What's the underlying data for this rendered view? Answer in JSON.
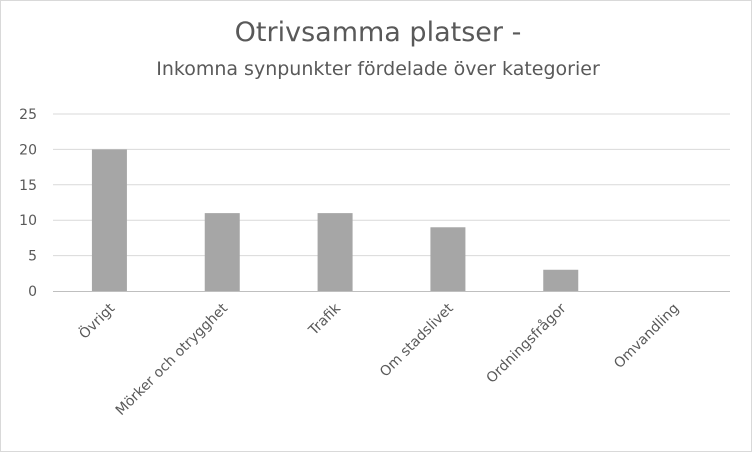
{
  "chart_data": {
    "type": "bar",
    "title": "Otrivsamma platser -",
    "subtitle": "Inkomna synpunkter fördelade över kategorier",
    "xlabel": "",
    "ylabel": "",
    "categories": [
      "Övrigt",
      "Mörker och otrygghet",
      "Trafik",
      "Om stadslivet",
      "Ordningsfrågor",
      "Omvandling"
    ],
    "values": [
      20,
      11,
      11,
      9,
      3,
      0
    ],
    "ylim": [
      0,
      25
    ],
    "yticks": [
      0,
      5,
      10,
      15,
      20,
      25
    ],
    "grid": true,
    "legend": "none",
    "bar_color": "#a6a6a6"
  }
}
